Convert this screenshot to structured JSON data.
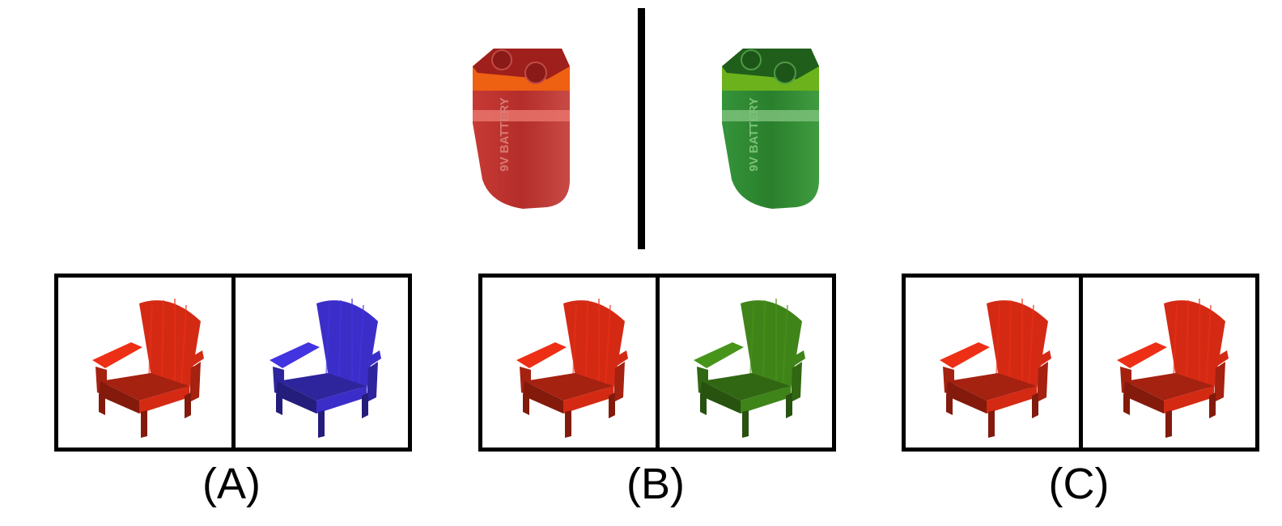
{
  "reference": {
    "left_item": {
      "object": "9V battery",
      "color": "#b8302c",
      "band_color": "#ee6010"
    },
    "right_item": {
      "object": "9V battery",
      "color": "#2f8a2c",
      "band_color": "#6cb21c"
    },
    "printed_text": "9V BATTERY"
  },
  "options": [
    {
      "label": "(A)",
      "left_chair": {
        "object": "adirondack chair",
        "color": "#d42a14"
      },
      "right_chair": {
        "object": "adirondack chair",
        "color": "#3b2ec8"
      }
    },
    {
      "label": "(B)",
      "left_chair": {
        "object": "adirondack chair",
        "color": "#d42a14"
      },
      "right_chair": {
        "object": "adirondack chair",
        "color": "#3f8418"
      }
    },
    {
      "label": "(C)",
      "left_chair": {
        "object": "adirondack chair",
        "color": "#d42a14"
      },
      "right_chair": {
        "object": "adirondack chair",
        "color": "#d42a14"
      }
    }
  ]
}
